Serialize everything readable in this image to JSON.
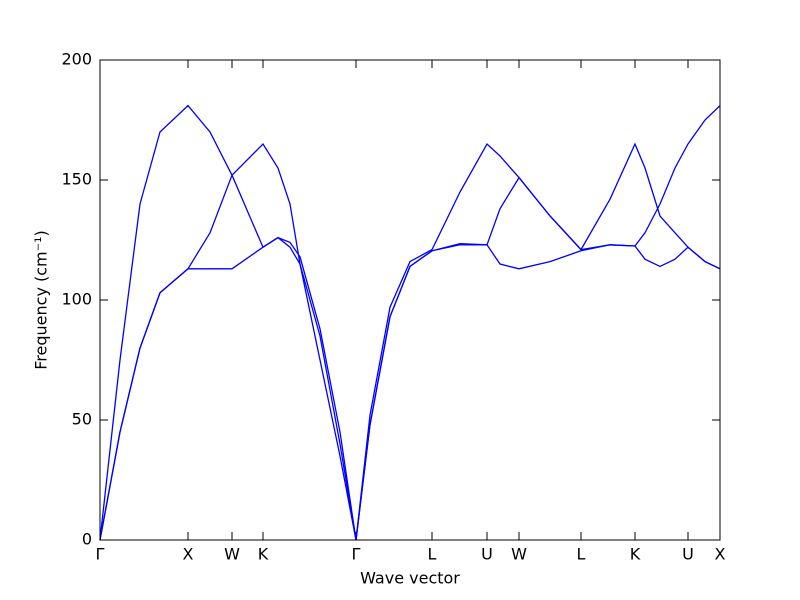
{
  "chart_data": {
    "type": "line",
    "xlabel": "Wave vector",
    "ylabel": "Frequency (cm⁻¹)",
    "x": [
      0,
      0.2,
      0.4,
      0.6,
      0.88,
      1.1,
      1.32,
      1.63,
      1.78,
      1.9,
      2.0,
      2.2,
      2.4,
      2.56,
      2.7,
      2.9,
      3.1,
      3.32,
      3.6,
      3.87,
      4.0,
      4.19,
      4.5,
      4.81,
      5.1,
      5.35,
      5.45,
      5.6,
      5.75,
      5.88,
      6.05,
      6.2
    ],
    "series": [
      {
        "color": "#0000ff",
        "values": [
          0,
          75,
          140,
          170,
          181,
          170,
          152,
          122,
          126,
          122,
          115,
          85,
          40,
          0,
          52,
          97,
          116,
          121,
          145,
          165,
          160,
          151,
          135,
          121,
          142,
          165,
          155,
          135,
          128,
          122,
          116,
          113
        ]
      },
      {
        "color": "#0000ff",
        "values": [
          0,
          45,
          80,
          103,
          113,
          113,
          113,
          122,
          126,
          124,
          118,
          88,
          45,
          0,
          48,
          93,
          114,
          120.5,
          123,
          123,
          115,
          113,
          116,
          120.5,
          123,
          122.5,
          117,
          114,
          117,
          122,
          116,
          113
        ]
      },
      {
        "color": "#0000ff",
        "values": [
          0,
          45,
          80,
          103,
          113,
          128,
          152,
          165,
          155,
          140,
          115,
          75,
          35,
          0,
          48,
          93,
          114,
          120.5,
          123.5,
          123,
          138,
          151,
          135,
          121,
          123,
          122.5,
          128,
          140,
          155,
          165,
          175,
          181
        ]
      }
    ],
    "xlim": [
      0,
      6.2
    ],
    "xticks": [
      {
        "value": 0,
        "label": "Γ"
      },
      {
        "value": 0.88,
        "label": "X"
      },
      {
        "value": 1.32,
        "label": "W"
      },
      {
        "value": 1.63,
        "label": "K"
      },
      {
        "value": 2.56,
        "label": "Γ"
      },
      {
        "value": 3.32,
        "label": "L"
      },
      {
        "value": 3.87,
        "label": "U"
      },
      {
        "value": 4.19,
        "label": "W"
      },
      {
        "value": 4.81,
        "label": "L"
      },
      {
        "value": 5.35,
        "label": "K"
      },
      {
        "value": 5.88,
        "label": "U"
      },
      {
        "value": 6.2,
        "label": "X"
      }
    ],
    "ylim": [
      0,
      200
    ],
    "yticks": [
      0,
      50,
      100,
      150,
      200
    ]
  }
}
